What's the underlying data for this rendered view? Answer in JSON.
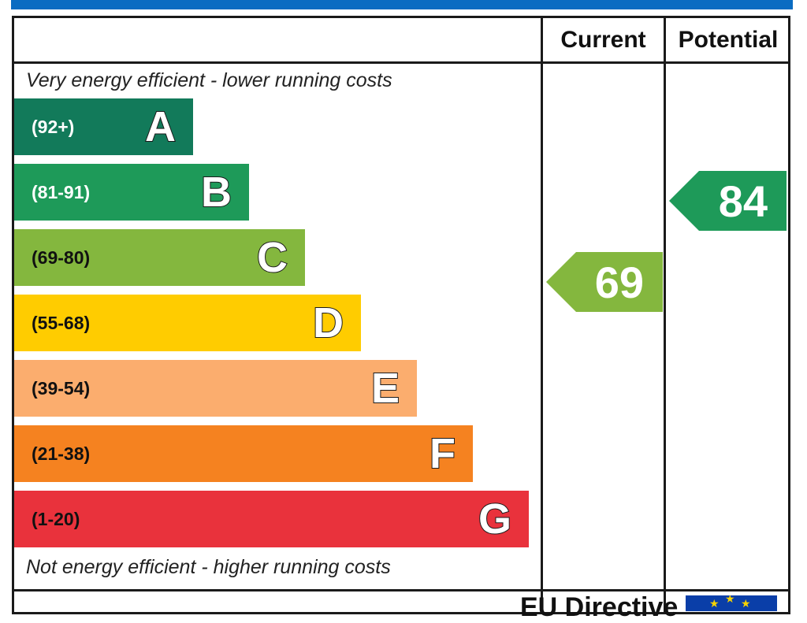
{
  "columns": {
    "current": "Current",
    "potential": "Potential"
  },
  "top_note": "Very energy efficient - lower running costs",
  "bottom_note": "Not energy efficient - higher running costs",
  "footer": "EU Directive",
  "colors": {
    "frame": "#1a1a1a",
    "top_bar": "#0a6cc2"
  },
  "chart_data": {
    "type": "bar",
    "categories": [
      "A",
      "B",
      "C",
      "D",
      "E",
      "F",
      "G"
    ],
    "bands": [
      {
        "letter": "A",
        "range": "(92+)",
        "color": "#127a5a",
        "text_color": "#ffffff"
      },
      {
        "letter": "B",
        "range": "(81-91)",
        "color": "#1e9a59",
        "text_color": "#ffffff"
      },
      {
        "letter": "C",
        "range": "(69-80)",
        "color": "#84b73e",
        "text_color": "#111111"
      },
      {
        "letter": "D",
        "range": "(55-68)",
        "color": "#ffcc00",
        "text_color": "#111111"
      },
      {
        "letter": "E",
        "range": "(39-54)",
        "color": "#fbad6e",
        "text_color": "#111111"
      },
      {
        "letter": "F",
        "range": "(21-38)",
        "color": "#f58220",
        "text_color": "#111111"
      },
      {
        "letter": "G",
        "range": "(1-20)",
        "color": "#e9323c",
        "text_color": "#111111"
      }
    ],
    "current": {
      "value": "69",
      "band": "C",
      "color": "#84b73e"
    },
    "potential": {
      "value": "84",
      "band": "B",
      "color": "#1e9a59"
    }
  }
}
